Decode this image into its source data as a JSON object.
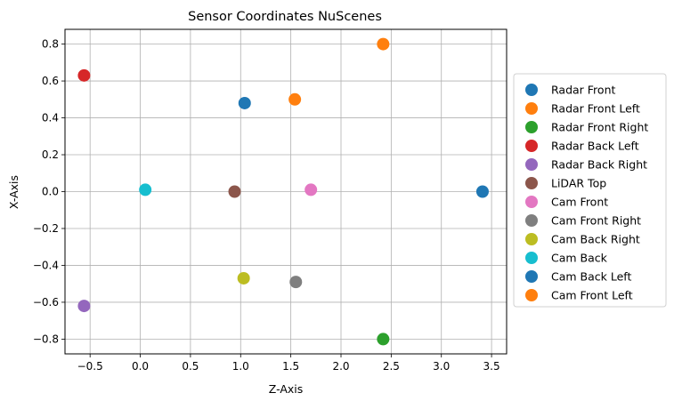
{
  "chart_data": {
    "type": "scatter",
    "title": "Sensor Coordinates NuScenes",
    "xlabel": "Z-Axis",
    "ylabel": "X-Axis",
    "xlim": [
      -0.75,
      3.65
    ],
    "ylim": [
      -0.88,
      0.88
    ],
    "xticks": [
      "−0.5",
      "0.0",
      "0.5",
      "1.0",
      "1.5",
      "2.0",
      "2.5",
      "3.0",
      "3.5"
    ],
    "yticks": [
      "−0.8",
      "−0.6",
      "−0.4",
      "−0.2",
      "0.0",
      "0.2",
      "0.4",
      "0.6",
      "0.8"
    ],
    "grid": true,
    "legend_position": "outside-right",
    "series": [
      {
        "name": "Radar Front",
        "color": "#1f77b4",
        "points": [
          {
            "x": 3.41,
            "y": 0.0
          }
        ]
      },
      {
        "name": "Radar Front Left",
        "color": "#ff7f0e",
        "points": [
          {
            "x": 2.42,
            "y": 0.8
          }
        ]
      },
      {
        "name": "Radar Front Right",
        "color": "#2ca02c",
        "points": [
          {
            "x": 2.42,
            "y": -0.8
          }
        ]
      },
      {
        "name": "Radar Back Left",
        "color": "#d62728",
        "points": [
          {
            "x": -0.56,
            "y": 0.63
          }
        ]
      },
      {
        "name": "Radar Back Right",
        "color": "#9467bd",
        "points": [
          {
            "x": -0.56,
            "y": -0.62
          }
        ]
      },
      {
        "name": "LiDAR Top",
        "color": "#8c564b",
        "points": [
          {
            "x": 0.94,
            "y": 0.0
          }
        ]
      },
      {
        "name": "Cam Front",
        "color": "#e377c2",
        "points": [
          {
            "x": 1.7,
            "y": 0.01
          }
        ]
      },
      {
        "name": "Cam Front Right",
        "color": "#7f7f7f",
        "points": [
          {
            "x": 1.55,
            "y": -0.49
          }
        ]
      },
      {
        "name": "Cam Back Right",
        "color": "#bcbd22",
        "points": [
          {
            "x": 1.03,
            "y": -0.47
          }
        ]
      },
      {
        "name": "Cam Back",
        "color": "#17becf",
        "points": [
          {
            "x": 0.05,
            "y": 0.01
          }
        ]
      },
      {
        "name": "Cam Back Left",
        "color": "#1f77b4",
        "points": [
          {
            "x": 1.04,
            "y": 0.48
          }
        ]
      },
      {
        "name": "Cam Front Left",
        "color": "#ff7f0e",
        "points": [
          {
            "x": 1.54,
            "y": 0.5
          }
        ]
      }
    ]
  }
}
